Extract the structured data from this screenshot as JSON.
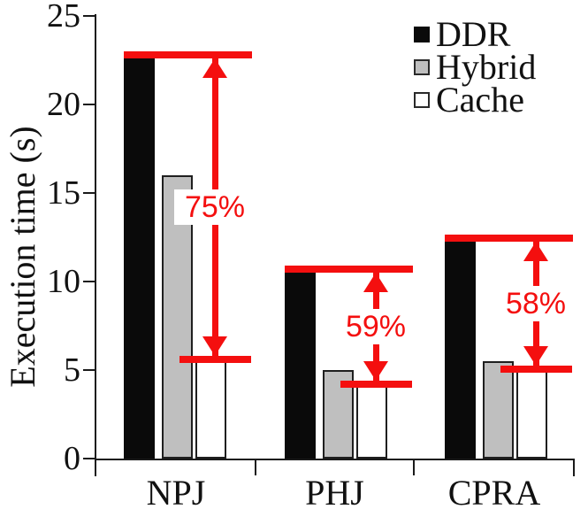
{
  "ylabel": "Execution time (s)",
  "legend": {
    "items": [
      {
        "label": "DDR",
        "color": "#0a0a0a",
        "border": "#0a0a0a"
      },
      {
        "label": "Hybrid",
        "color": "#bfbfbf",
        "border": "#2a2a2a"
      },
      {
        "label": "Cache",
        "color": "#ffffff",
        "border": "#2a2a2a"
      }
    ]
  },
  "colors": {
    "annotation_red": "#f40f0f",
    "axis": "#1a1a1a",
    "ddr_bar": "#0a0a0a",
    "hybrid_bar": "#bfbfbf",
    "cache_bar": "#ffffff"
  },
  "chart_data": {
    "type": "bar",
    "title": "",
    "xlabel": "",
    "ylabel": "Execution time (s)",
    "ylim": [
      0,
      25
    ],
    "yticks": [
      0,
      5,
      10,
      15,
      20,
      25
    ],
    "grid": false,
    "legend_position": "top-right",
    "categories": [
      "NPJ",
      "PHJ",
      "CPRA"
    ],
    "series": [
      {
        "name": "DDR",
        "color": "#0a0a0a",
        "values": [
          22.6,
          10.5,
          12.3
        ]
      },
      {
        "name": "Hybrid",
        "color": "#bfbfbf",
        "values": [
          16.0,
          5.0,
          5.5
        ]
      },
      {
        "name": "Cache",
        "color": "#ffffff",
        "values": [
          5.6,
          4.3,
          5.1
        ]
      }
    ],
    "annotations": [
      {
        "category": "NPJ",
        "label": "75%",
        "top_value": 22.8,
        "bottom_value": 5.6
      },
      {
        "category": "PHJ",
        "label": "59%",
        "top_value": 10.7,
        "bottom_value": 4.2
      },
      {
        "category": "CPRA",
        "label": "58%",
        "top_value": 12.45,
        "bottom_value": 5.05
      }
    ]
  }
}
